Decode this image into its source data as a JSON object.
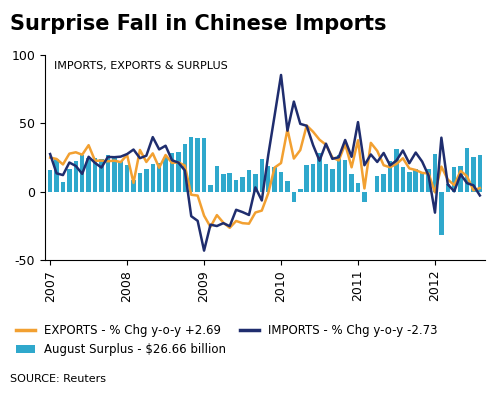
{
  "chart_data": {
    "type": "line",
    "title": "Surprise Fall in Chinese Imports",
    "subtitle": "IMPORTS, EXPORTS & SURPLUS",
    "source": "SOURCE: Reuters",
    "categories": [
      "2007",
      null,
      null,
      null,
      null,
      null,
      null,
      null,
      null,
      null,
      null,
      null,
      "2008",
      null,
      null,
      null,
      null,
      null,
      null,
      null,
      null,
      null,
      null,
      null,
      "2009",
      null,
      null,
      null,
      null,
      null,
      null,
      null,
      null,
      null,
      null,
      null,
      "2010",
      null,
      null,
      null,
      null,
      null,
      null,
      null,
      null,
      null,
      null,
      null,
      "2011",
      null,
      null,
      null,
      null,
      null,
      null,
      null,
      null,
      null,
      null,
      null,
      "2012",
      null,
      null,
      null,
      null,
      null,
      null,
      null
    ],
    "series": [
      {
        "name": "August Surplus - $26.66 billion",
        "type": "bar",
        "color": "#2fa8cc",
        "values": [
          15.9,
          23.8,
          6.9,
          16.9,
          22.5,
          26.9,
          24.4,
          25.0,
          23.9,
          27.0,
          26.3,
          22.7,
          19.4,
          8.6,
          13.4,
          16.7,
          20.2,
          21.4,
          25.3,
          28.7,
          29.3,
          35.2,
          40.1,
          39.0,
          39.1,
          4.8,
          18.6,
          13.1,
          13.4,
          8.3,
          10.6,
          15.7,
          12.9,
          24.0,
          19.1,
          18.4,
          14.2,
          7.6,
          -7.2,
          1.7,
          19.5,
          20.0,
          28.7,
          20.0,
          16.9,
          27.1,
          22.9,
          13.1,
          6.5,
          -7.3,
          0.1,
          11.4,
          13.0,
          22.3,
          31.5,
          17.8,
          14.5,
          17.0,
          14.5,
          16.5,
          27.3,
          -31.5,
          5.4,
          18.4,
          18.7,
          31.7,
          25.1,
          26.66
        ]
      },
      {
        "name": "EXPORTS - % Chg y-o-y +2.69",
        "type": "line",
        "color": "#f2a031",
        "values": [
          25.0,
          24.0,
          20.0,
          27.9,
          28.9,
          27.1,
          34.1,
          22.7,
          22.8,
          22.3,
          22.8,
          21.7,
          27.0,
          6.5,
          30.6,
          21.8,
          28.1,
          17.6,
          26.9,
          21.1,
          21.5,
          19.2,
          -2.2,
          -2.8,
          -17.5,
          -25.7,
          -17.1,
          -22.6,
          -26.4,
          -21.4,
          -23.0,
          -23.4,
          -15.2,
          -13.8,
          -1.2,
          17.7,
          21.0,
          45.7,
          24.3,
          30.5,
          48.5,
          43.9,
          38.1,
          34.4,
          25.1,
          22.9,
          34.9,
          17.9,
          37.7,
          2.4,
          35.8,
          29.9,
          19.4,
          17.9,
          20.4,
          24.5,
          17.1,
          15.9,
          13.8,
          13.4,
          -0.5,
          18.4,
          8.9,
          4.9,
          15.3,
          11.3,
          1.0,
          2.69
        ]
      },
      {
        "name": "IMPORTS - % Chg y-o-y -2.73",
        "type": "line",
        "color": "#1f2d6e",
        "values": [
          27.6,
          13.5,
          12.2,
          21.4,
          18.9,
          13.1,
          25.6,
          21.1,
          17.7,
          25.5,
          25.3,
          25.7,
          27.6,
          30.9,
          24.6,
          26.4,
          40.0,
          31.0,
          33.7,
          23.1,
          21.3,
          15.6,
          -17.9,
          -21.3,
          -43.1,
          -24.1,
          -25.1,
          -23.0,
          -25.2,
          -13.2,
          -14.9,
          -17.0,
          3.2,
          -6.4,
          26.7,
          55.9,
          85.5,
          44.7,
          66.0,
          49.7,
          48.3,
          34.1,
          22.7,
          35.2,
          24.1,
          25.3,
          37.9,
          25.6,
          51.0,
          19.4,
          27.3,
          21.8,
          28.4,
          19.3,
          22.9,
          30.2,
          20.9,
          28.7,
          22.1,
          11.8,
          -15.3,
          39.6,
          5.3,
          0.3,
          12.7,
          6.3,
          4.7,
          -2.73
        ]
      }
    ],
    "ylim": [
      -50,
      100
    ],
    "yticks": [
      -50,
      0,
      50,
      100
    ],
    "grid": false,
    "legend": "lower left"
  }
}
